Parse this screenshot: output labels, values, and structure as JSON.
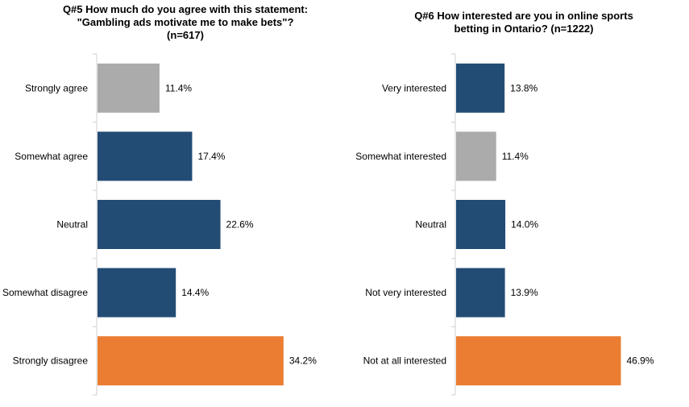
{
  "colors": {
    "gray": "#ABABAB",
    "blue": "#234C75",
    "orange": "#EA7D31",
    "axis": "#D0D0D0"
  },
  "chart_data": [
    {
      "type": "bar",
      "orientation": "horizontal",
      "title_lines": [
        "Q#5 How much do you agree with this statement:",
        "\"Gambling ads motivate me to make bets\"?",
        "(n=617)"
      ],
      "categories": [
        "Strongly agree",
        "Somewhat agree",
        "Neutral",
        "Somewhat disagree",
        "Strongly disagree"
      ],
      "values": [
        11.4,
        17.4,
        22.6,
        14.4,
        34.2
      ],
      "labels": [
        "11.4%",
        "17.4%",
        "22.6%",
        "14.4%",
        "34.2%"
      ],
      "bar_colors": [
        "#ABABAB",
        "#234C75",
        "#234C75",
        "#234C75",
        "#EA7D31"
      ],
      "unit": "%",
      "grid": false,
      "legend": "none"
    },
    {
      "type": "bar",
      "orientation": "horizontal",
      "title_lines": [
        "Q#6 How interested are you in online sports",
        "betting in Ontario? (n=1222)"
      ],
      "categories": [
        "Very interested",
        "Somewhat interested",
        "Neutral",
        "Not very interested",
        "Not at all interested"
      ],
      "values": [
        13.8,
        11.4,
        14.0,
        13.9,
        46.9
      ],
      "labels": [
        "13.8%",
        "11.4%",
        "14.0%",
        "13.9%",
        "46.9%"
      ],
      "bar_colors": [
        "#234C75",
        "#ABABAB",
        "#234C75",
        "#234C75",
        "#EA7D31"
      ],
      "unit": "%",
      "grid": false,
      "legend": "none"
    }
  ]
}
